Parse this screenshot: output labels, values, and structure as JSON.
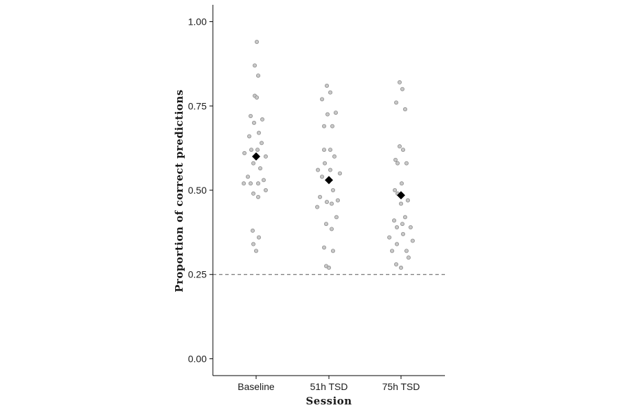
{
  "chart_data": {
    "type": "scatter",
    "title": "",
    "xlabel": "Session",
    "ylabel": "Proportion of correct predictions",
    "categories": [
      "Baseline",
      "51h TSD",
      "75h TSD"
    ],
    "ylim": [
      -0.05,
      1.05
    ],
    "yticks": [
      "0.00",
      "0.25",
      "0.50",
      "0.75",
      "1.00"
    ],
    "reference_line": {
      "y": 0.25,
      "style": "dashed"
    },
    "grid": false,
    "legend": "none",
    "point_color": "#c8c8c8",
    "mean_color": "#000000",
    "series": [
      {
        "category": "Baseline",
        "mean": 0.6,
        "points": [
          {
            "offset": 0.01,
            "y": 0.94
          },
          {
            "offset": -0.02,
            "y": 0.87
          },
          {
            "offset": 0.03,
            "y": 0.84
          },
          {
            "offset": -0.02,
            "y": 0.78
          },
          {
            "offset": 0.01,
            "y": 0.775
          },
          {
            "offset": -0.08,
            "y": 0.72
          },
          {
            "offset": 0.09,
            "y": 0.71
          },
          {
            "offset": -0.03,
            "y": 0.7
          },
          {
            "offset": 0.04,
            "y": 0.67
          },
          {
            "offset": -0.1,
            "y": 0.66
          },
          {
            "offset": 0.08,
            "y": 0.64
          },
          {
            "offset": -0.07,
            "y": 0.62
          },
          {
            "offset": 0.02,
            "y": 0.62
          },
          {
            "offset": -0.17,
            "y": 0.61
          },
          {
            "offset": 0.14,
            "y": 0.6
          },
          {
            "offset": -0.04,
            "y": 0.58
          },
          {
            "offset": 0.06,
            "y": 0.565
          },
          {
            "offset": -0.12,
            "y": 0.54
          },
          {
            "offset": 0.11,
            "y": 0.53
          },
          {
            "offset": -0.18,
            "y": 0.52
          },
          {
            "offset": -0.08,
            "y": 0.52
          },
          {
            "offset": 0.03,
            "y": 0.52
          },
          {
            "offset": 0.14,
            "y": 0.5
          },
          {
            "offset": -0.04,
            "y": 0.49
          },
          {
            "offset": 0.03,
            "y": 0.48
          },
          {
            "offset": -0.05,
            "y": 0.38
          },
          {
            "offset": 0.04,
            "y": 0.36
          },
          {
            "offset": -0.04,
            "y": 0.34
          },
          {
            "offset": 0.0,
            "y": 0.32
          }
        ]
      },
      {
        "category": "51h TSD",
        "mean": 0.53,
        "points": [
          {
            "offset": -0.03,
            "y": 0.81
          },
          {
            "offset": 0.02,
            "y": 0.79
          },
          {
            "offset": -0.1,
            "y": 0.77
          },
          {
            "offset": 0.1,
            "y": 0.73
          },
          {
            "offset": -0.02,
            "y": 0.725
          },
          {
            "offset": -0.07,
            "y": 0.69
          },
          {
            "offset": 0.05,
            "y": 0.69
          },
          {
            "offset": -0.07,
            "y": 0.62
          },
          {
            "offset": 0.02,
            "y": 0.62
          },
          {
            "offset": 0.08,
            "y": 0.6
          },
          {
            "offset": -0.06,
            "y": 0.58
          },
          {
            "offset": -0.16,
            "y": 0.56
          },
          {
            "offset": 0.02,
            "y": 0.56
          },
          {
            "offset": 0.16,
            "y": 0.55
          },
          {
            "offset": -0.1,
            "y": 0.54
          },
          {
            "offset": 0.06,
            "y": 0.5
          },
          {
            "offset": -0.13,
            "y": 0.48
          },
          {
            "offset": 0.13,
            "y": 0.47
          },
          {
            "offset": -0.03,
            "y": 0.465
          },
          {
            "offset": 0.04,
            "y": 0.46
          },
          {
            "offset": -0.17,
            "y": 0.45
          },
          {
            "offset": 0.11,
            "y": 0.42
          },
          {
            "offset": -0.04,
            "y": 0.4
          },
          {
            "offset": 0.04,
            "y": 0.385
          },
          {
            "offset": -0.07,
            "y": 0.33
          },
          {
            "offset": 0.06,
            "y": 0.32
          },
          {
            "offset": -0.04,
            "y": 0.275
          },
          {
            "offset": 0.0,
            "y": 0.27
          }
        ]
      },
      {
        "category": "75h TSD",
        "mean": 0.485,
        "points": [
          {
            "offset": -0.02,
            "y": 0.82
          },
          {
            "offset": 0.02,
            "y": 0.8
          },
          {
            "offset": -0.07,
            "y": 0.76
          },
          {
            "offset": 0.06,
            "y": 0.74
          },
          {
            "offset": -0.02,
            "y": 0.63
          },
          {
            "offset": 0.03,
            "y": 0.62
          },
          {
            "offset": -0.08,
            "y": 0.59
          },
          {
            "offset": -0.05,
            "y": 0.58
          },
          {
            "offset": 0.08,
            "y": 0.58
          },
          {
            "offset": 0.01,
            "y": 0.52
          },
          {
            "offset": -0.09,
            "y": 0.5
          },
          {
            "offset": -0.05,
            "y": 0.49
          },
          {
            "offset": 0.1,
            "y": 0.47
          },
          {
            "offset": 0.0,
            "y": 0.46
          },
          {
            "offset": 0.06,
            "y": 0.42
          },
          {
            "offset": -0.1,
            "y": 0.41
          },
          {
            "offset": 0.02,
            "y": 0.4
          },
          {
            "offset": 0.14,
            "y": 0.39
          },
          {
            "offset": -0.06,
            "y": 0.39
          },
          {
            "offset": 0.03,
            "y": 0.37
          },
          {
            "offset": -0.17,
            "y": 0.36
          },
          {
            "offset": 0.17,
            "y": 0.35
          },
          {
            "offset": -0.06,
            "y": 0.34
          },
          {
            "offset": 0.08,
            "y": 0.32
          },
          {
            "offset": -0.13,
            "y": 0.32
          },
          {
            "offset": 0.11,
            "y": 0.3
          },
          {
            "offset": -0.07,
            "y": 0.28
          },
          {
            "offset": 0.0,
            "y": 0.27
          }
        ]
      }
    ]
  }
}
